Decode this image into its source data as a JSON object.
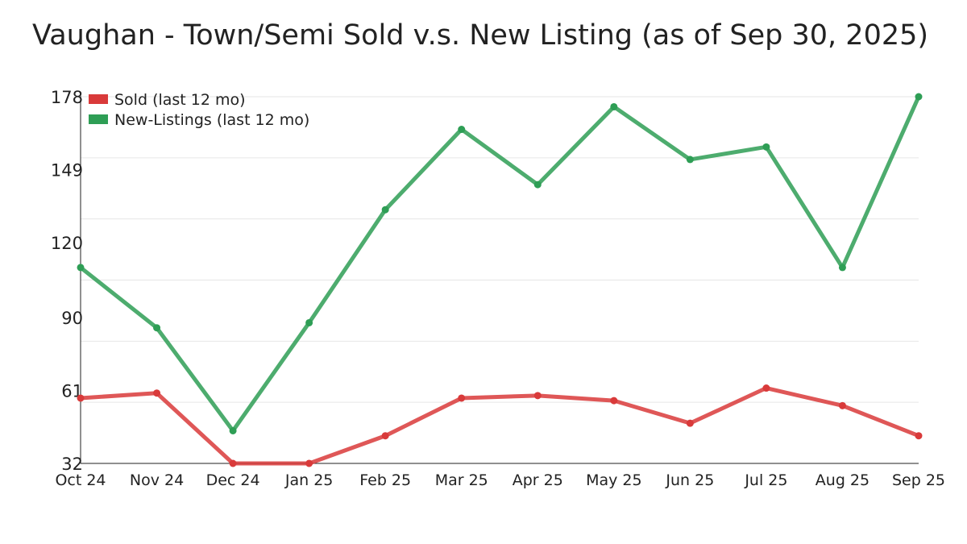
{
  "chart_data": {
    "type": "line",
    "title": "Vaughan - Town/Semi Sold v.s. New Listing (as of Sep 30, 2025)",
    "xlabel": "",
    "ylabel": "",
    "categories": [
      "Oct 24",
      "Nov 24",
      "Dec 24",
      "Jan 25",
      "Feb 25",
      "Mar 25",
      "Apr 25",
      "May 25",
      "Jun 25",
      "Jul 25",
      "Aug 25",
      "Sep 25"
    ],
    "yticks": [
      32,
      61,
      90,
      120,
      149,
      178
    ],
    "ylim": [
      32,
      178
    ],
    "grid": true,
    "legend_position": "top-left",
    "series": [
      {
        "name": "Sold (last 12 mo)",
        "color": "#d93a3a",
        "values": [
          58,
          60,
          32,
          32,
          43,
          58,
          59,
          57,
          48,
          62,
          55,
          43
        ]
      },
      {
        "name": "New-Listings (last 12 mo)",
        "color": "#2e9e55",
        "values": [
          110,
          86,
          45,
          88,
          133,
          165,
          143,
          174,
          153,
          158,
          110,
          178
        ]
      }
    ]
  }
}
